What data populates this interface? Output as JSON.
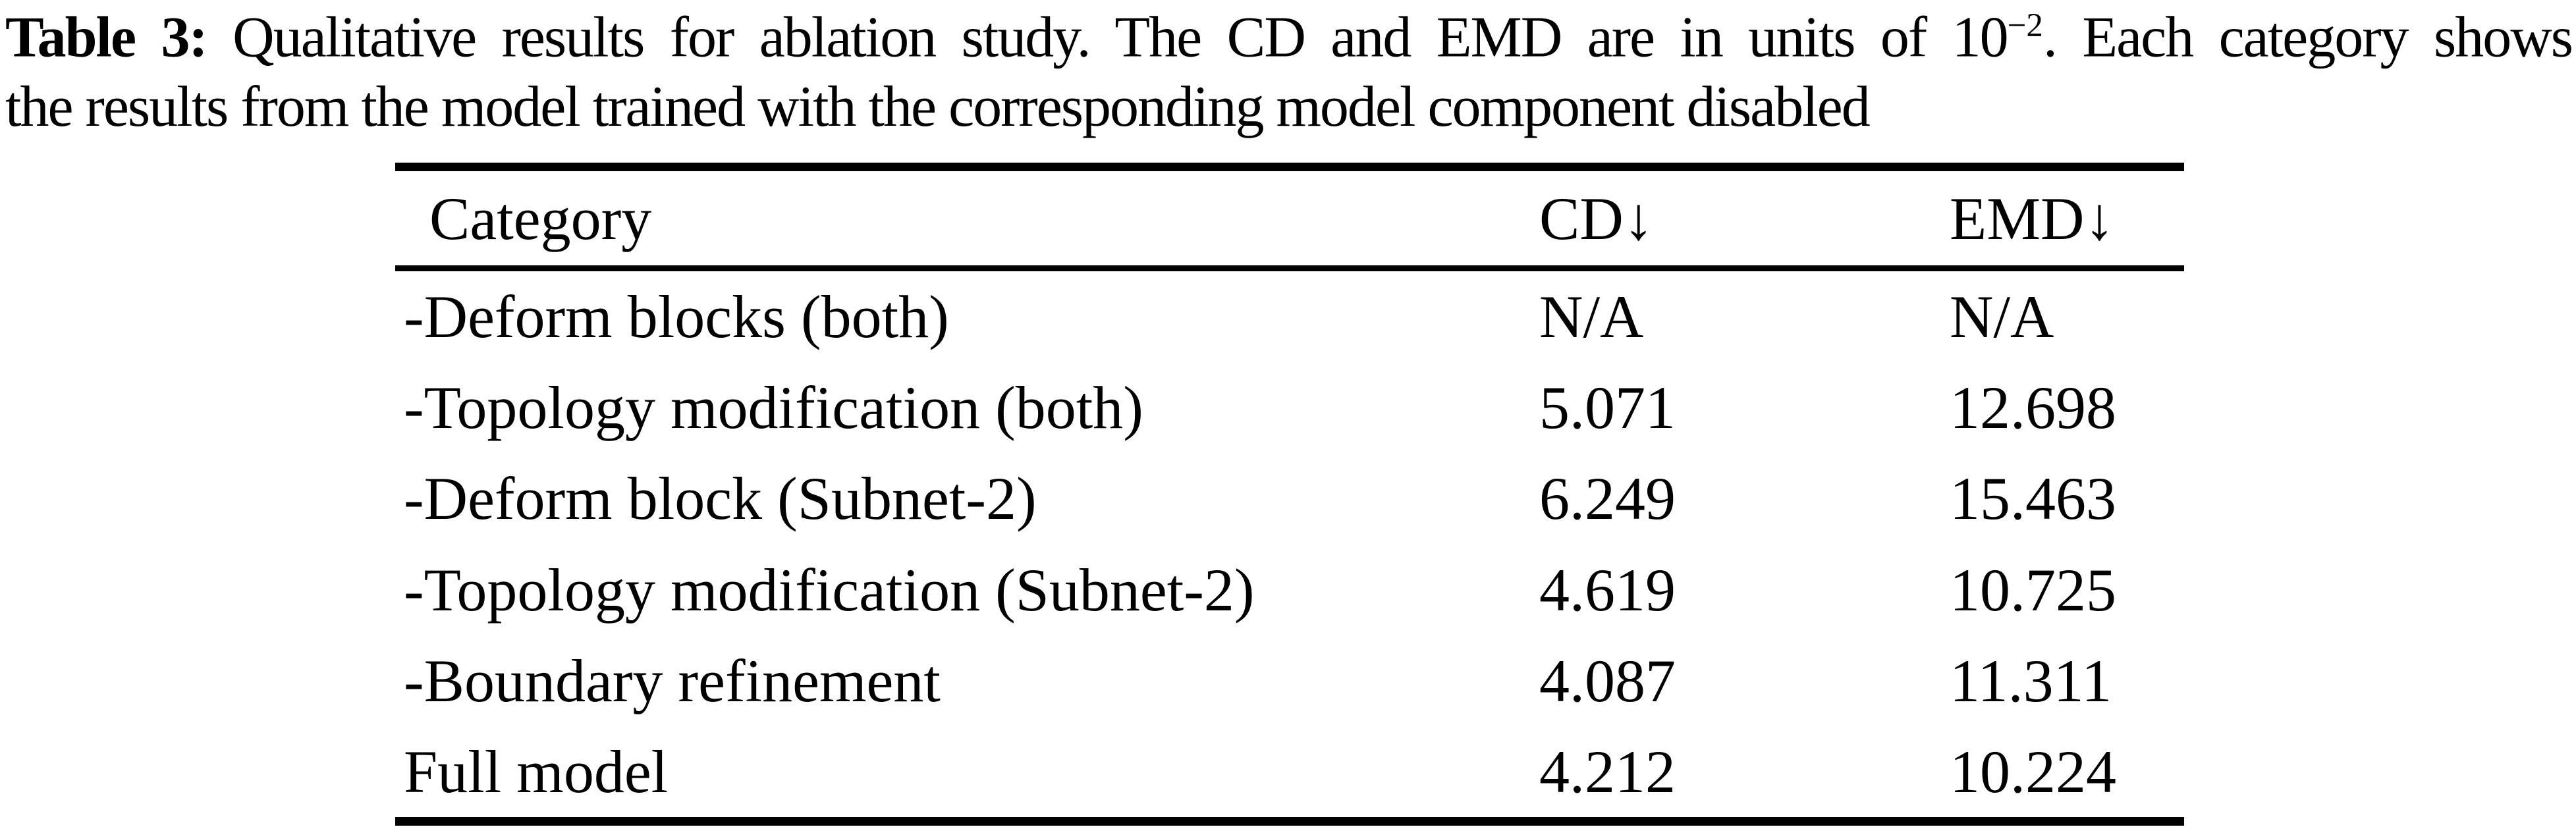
{
  "caption": {
    "label": "Table 3:",
    "line1_after_label": " Qualitative results for ablation study. The CD and EMD are in units of ",
    "exp_base": "10",
    "exp_sup": "−2",
    "line1_tail": ". Each category shows",
    "line2": "the results from the model trained with the corresponding model component disabled"
  },
  "table": {
    "columns": [
      "Category",
      "CD↓",
      "EMD↓"
    ],
    "rows": [
      {
        "category": "-Deform blocks (both)",
        "cd": "N/A",
        "emd": "N/A"
      },
      {
        "category": "-Topology modification (both)",
        "cd": "5.071",
        "emd": "12.698"
      },
      {
        "category": "-Deform block (Subnet-2)",
        "cd": "6.249",
        "emd": "15.463"
      },
      {
        "category": "-Topology modification (Subnet-2)",
        "cd": "4.619",
        "emd": "10.725"
      },
      {
        "category": "-Boundary refinement",
        "cd": "4.087",
        "emd": "11.311"
      },
      {
        "category": "Full model",
        "cd": "4.212",
        "emd": "10.224"
      }
    ]
  }
}
